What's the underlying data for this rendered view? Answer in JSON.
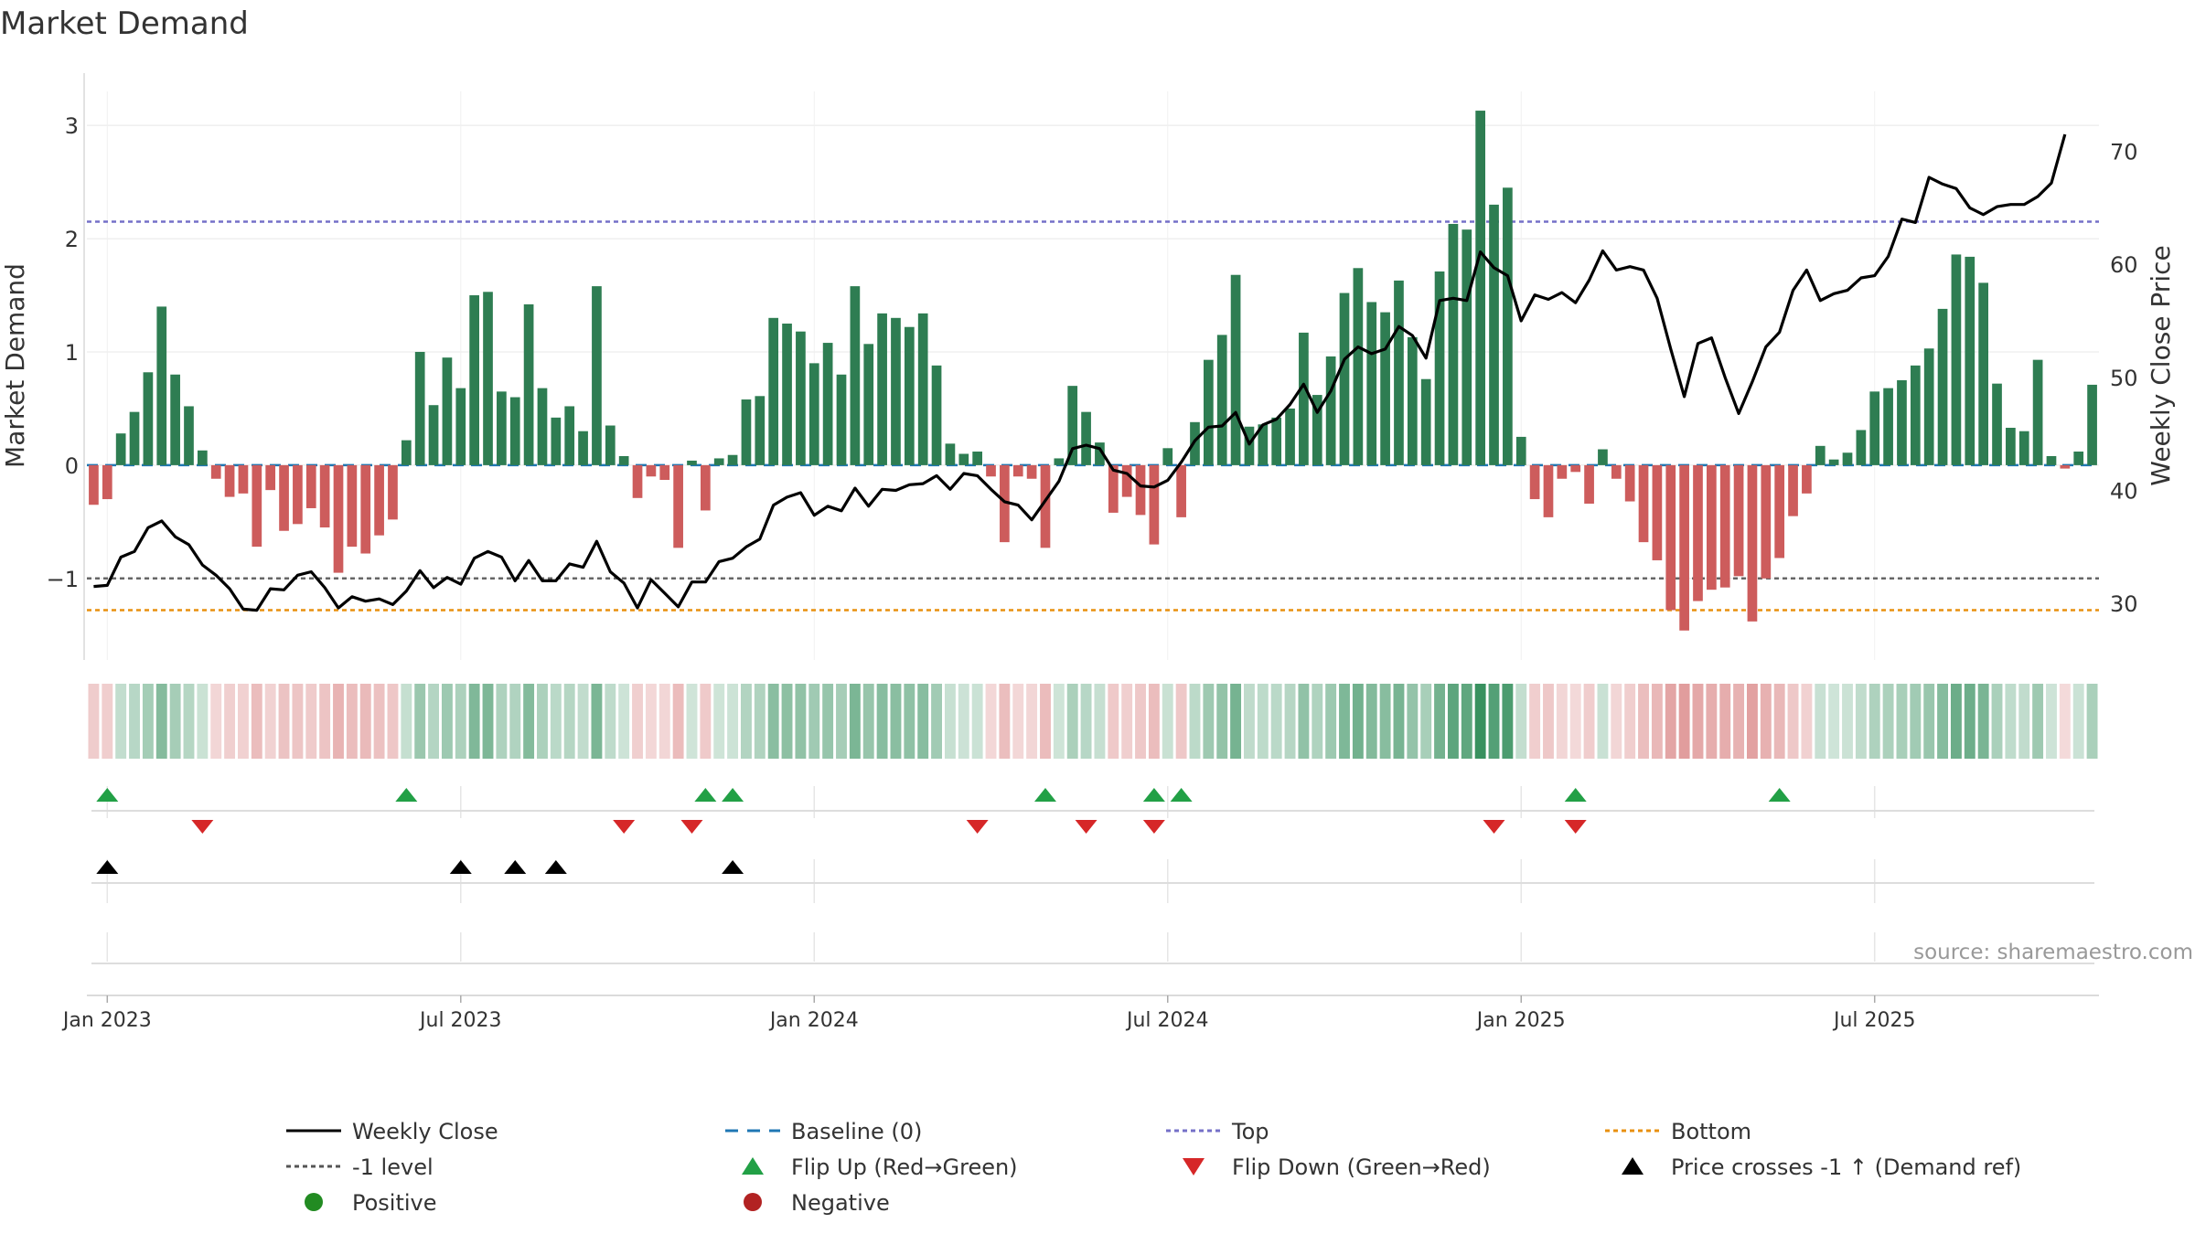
{
  "chart_data": {
    "type": "bar",
    "title": "Market Demand",
    "ylabel": "Market Demand",
    "y2label": "Weekly Close Price",
    "ylim": [
      -1.72,
      3.3
    ],
    "y2lim": [
      25.0,
      75.3
    ],
    "yticks": [
      -1,
      0,
      1,
      2,
      3
    ],
    "y2ticks": [
      30,
      40,
      50,
      60,
      70
    ],
    "xticks": [
      {
        "label": "Jan 2023",
        "week": 1
      },
      {
        "label": "Jul 2023",
        "week": 27
      },
      {
        "label": "Jan 2024",
        "week": 53
      },
      {
        "label": "Jul 2024",
        "week": 79
      },
      {
        "label": "Jan 2025",
        "week": 105
      },
      {
        "label": "Jul 2025",
        "week": 131
      }
    ],
    "reference_lines": {
      "top": 2.15,
      "bottom": -1.28,
      "minus_one_level": -1.0,
      "baseline": 0
    },
    "series": [
      {
        "name": "Market Demand",
        "type": "bar",
        "values": [
          -0.35,
          -0.3,
          0.28,
          0.47,
          0.82,
          1.4,
          0.8,
          0.52,
          0.13,
          -0.12,
          -0.28,
          -0.25,
          -0.72,
          -0.22,
          -0.58,
          -0.52,
          -0.38,
          -0.55,
          -0.95,
          -0.72,
          -0.78,
          -0.62,
          -0.48,
          0.22,
          1.0,
          0.53,
          0.95,
          0.68,
          1.5,
          1.53,
          0.65,
          0.6,
          1.42,
          0.68,
          0.42,
          0.52,
          0.3,
          1.58,
          0.35,
          0.08,
          -0.29,
          -0.1,
          -0.13,
          -0.73,
          0.04,
          -0.4,
          0.06,
          0.09,
          0.58,
          0.61,
          1.3,
          1.25,
          1.18,
          0.9,
          1.08,
          0.8,
          1.58,
          1.07,
          1.34,
          1.3,
          1.22,
          1.34,
          0.88,
          0.19,
          0.1,
          0.12,
          -0.1,
          -0.68,
          -0.1,
          -0.12,
          -0.73,
          0.06,
          0.7,
          0.47,
          0.2,
          -0.42,
          -0.28,
          -0.44,
          -0.7,
          0.15,
          -0.46,
          0.38,
          0.93,
          1.15,
          1.68,
          0.34,
          0.36,
          0.42,
          0.5,
          1.17,
          0.62,
          0.96,
          1.52,
          1.74,
          1.44,
          1.35,
          1.63,
          1.13,
          0.76,
          1.71,
          2.13,
          2.08,
          3.13,
          2.3,
          2.45,
          0.25,
          -0.3,
          -0.46,
          -0.12,
          -0.06,
          -0.34,
          0.14,
          -0.12,
          -0.32,
          -0.68,
          -0.84,
          -1.28,
          -1.46,
          -1.2,
          -1.1,
          -1.08,
          -0.98,
          -1.38,
          -1.0,
          -0.82,
          -0.45,
          -0.25,
          0.17,
          0.05,
          0.11,
          0.31,
          0.65,
          0.68,
          0.75,
          0.88,
          1.03,
          1.38,
          1.86,
          1.84,
          1.61,
          0.72,
          0.33,
          0.3,
          0.93,
          0.08,
          -0.03,
          0.12,
          0.71
        ]
      },
      {
        "name": "Weekly Close",
        "type": "line",
        "values": [
          31.5,
          31.6,
          34.1,
          34.6,
          36.7,
          37.3,
          35.9,
          35.2,
          33.4,
          32.5,
          31.3,
          29.5,
          29.4,
          31.3,
          31.2,
          32.5,
          32.8,
          31.4,
          29.6,
          30.6,
          30.2,
          30.4,
          29.9,
          31.1,
          32.9,
          31.4,
          32.3,
          31.7,
          34.0,
          34.6,
          34.1,
          32.0,
          33.8,
          32.0,
          32.0,
          33.5,
          33.2,
          35.5,
          32.8,
          31.8,
          29.6,
          32.1,
          30.9,
          29.7,
          31.9,
          31.9,
          33.7,
          34.0,
          35.0,
          35.7,
          38.7,
          39.4,
          39.8,
          37.8,
          38.6,
          38.2,
          40.2,
          38.6,
          40.1,
          40.0,
          40.5,
          40.6,
          41.3,
          40.1,
          41.5,
          41.3,
          40.1,
          39.0,
          38.7,
          37.4,
          39.1,
          40.8,
          43.7,
          44.0,
          43.7,
          41.8,
          41.5,
          40.4,
          40.3,
          40.9,
          42.5,
          44.4,
          45.6,
          45.7,
          46.9,
          44.1,
          45.8,
          46.3,
          47.6,
          49.4,
          46.9,
          48.8,
          51.6,
          52.7,
          52.1,
          52.5,
          54.5,
          53.7,
          51.7,
          56.8,
          57.0,
          56.8,
          61.1,
          59.7,
          59.0,
          55.0,
          57.3,
          56.9,
          57.5,
          56.6,
          58.6,
          61.2,
          59.5,
          59.8,
          59.5,
          57.0,
          52.5,
          48.3,
          53.0,
          53.5,
          50.0,
          46.8,
          49.6,
          52.7,
          54.0,
          57.7,
          59.5,
          56.8,
          57.4,
          57.7,
          58.8,
          59.0,
          60.7,
          64.0,
          63.7,
          67.7,
          67.1,
          66.7,
          65.0,
          64.4,
          65.1,
          65.3,
          65.3,
          66.0,
          67.2,
          71.5
        ]
      }
    ],
    "flip_up_weeks": [
      1,
      23,
      45,
      47,
      70,
      78,
      80,
      109,
      124
    ],
    "flip_down_weeks": [
      8,
      39,
      44,
      65,
      73,
      78,
      103,
      109
    ],
    "price_cross_weeks": [
      1,
      27,
      31,
      34,
      47
    ],
    "source": "source: sharemaestro.com",
    "legend": [
      {
        "label": "Weekly Close",
        "marker": "line-solid",
        "color": "#000000"
      },
      {
        "label": "Baseline (0)",
        "marker": "line-dash",
        "color": "#1f77b4"
      },
      {
        "label": "Top",
        "marker": "line-dot",
        "color": "#7570c8"
      },
      {
        "label": "Bottom",
        "marker": "line-dot",
        "color": "#e8900f"
      },
      {
        "label": "-1 level",
        "marker": "line-dot",
        "color": "#555555"
      },
      {
        "label": "Flip Up (Red→Green)",
        "marker": "triangle-up",
        "color": "#22a046"
      },
      {
        "label": "Flip Down (Green→Red)",
        "marker": "triangle-down",
        "color": "#d62728"
      },
      {
        "label": "Price crosses -1 ↑ (Demand ref)",
        "marker": "triangle-up",
        "color": "#000000"
      },
      {
        "label": "Positive",
        "marker": "circle",
        "color": "#228b22"
      },
      {
        "label": "Negative",
        "marker": "circle",
        "color": "#b22222"
      }
    ],
    "colors": {
      "positive": "#2e7d52",
      "negative": "#cd5c5c",
      "line": "#000000",
      "grid": "#e8e8e8"
    }
  }
}
